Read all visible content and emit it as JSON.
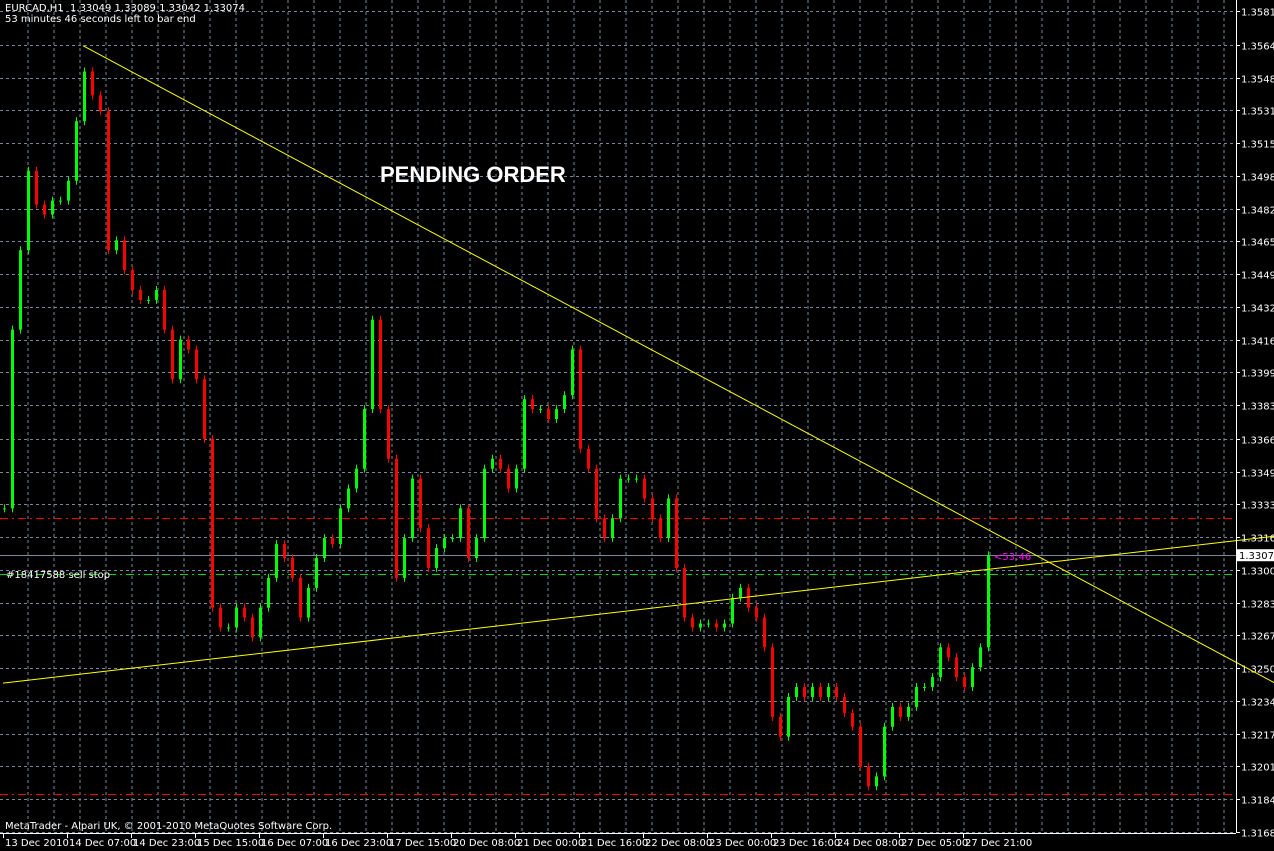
{
  "header": {
    "symbol_line": "EURCAD,H1  1.33049 1.33089 1.33042 1.33074",
    "timer_line": "53 minutes 46 seconds left to bar end"
  },
  "annotation": "PENDING ORDER",
  "copyright": "MetaTrader - Alpari UK, © 2001-2010 MetaQuotes Software Corp.",
  "order_label": "#18417588 sell stop",
  "bar_timer": "<53:46",
  "current_price": "1.33074",
  "colors": {
    "background": "#000000",
    "bull": "#00ff00",
    "bear": "#ff0000",
    "grid": "#778899",
    "trendline": "#ffff00",
    "order_line": "#00dd00",
    "stop_line": "#ff0000",
    "axis": "#ffffff",
    "timer": "#ff00ff"
  },
  "chart_data": {
    "type": "candlestick",
    "symbol": "EURCAD",
    "timeframe": "H1",
    "ylim": [
      1.3168,
      1.35815
    ],
    "grid": true,
    "y_ticks": [
      "1.35815",
      "1.35645",
      "1.35480",
      "1.35315",
      "1.35150",
      "1.34985",
      "1.34820",
      "1.34655",
      "1.34490",
      "1.34325",
      "1.34160",
      "1.33995",
      "1.33830",
      "1.33660",
      "1.33495",
      "1.33330",
      "1.33165",
      "1.33000",
      "1.32835",
      "1.32670",
      "1.32505",
      "1.32340",
      "1.32175",
      "1.32010",
      "1.31845",
      "1.31680"
    ],
    "x_ticks": [
      "13 Dec 2010",
      "14 Dec 07:00",
      "14 Dec 23:00",
      "15 Dec 15:00",
      "16 Dec 07:00",
      "16 Dec 23:00",
      "17 Dec 15:00",
      "20 Dec 08:00",
      "21 Dec 00:00",
      "21 Dec 16:00",
      "22 Dec 08:00",
      "23 Dec 00:00",
      "23 Dec 16:00",
      "24 Dec 08:00",
      "27 Dec 05:00",
      "27 Dec 21:00"
    ],
    "closes": [
      1.3331,
      1.3421,
      1.3461,
      1.3501,
      1.3484,
      1.3479,
      1.3486,
      1.3486,
      1.3496,
      1.3526,
      1.3551,
      1.3539,
      1.3531,
      1.3461,
      1.3466,
      1.3451,
      1.3441,
      1.3436,
      1.3436,
      1.3441,
      1.3421,
      1.3396,
      1.3416,
      1.3411,
      1.3396,
      1.3366,
      1.3281,
      1.3271,
      1.3271,
      1.3281,
      1.3276,
      1.3266,
      1.3281,
      1.3296,
      1.3313,
      1.3306,
      1.3296,
      1.3276,
      1.3291,
      1.3306,
      1.3316,
      1.3313,
      1.3331,
      1.3341,
      1.3351,
      1.3381,
      1.3426,
      1.3381,
      1.3356,
      1.3296,
      1.3316,
      1.3346,
      1.3321,
      1.3301,
      1.3311,
      1.3316,
      1.3316,
      1.3331,
      1.3306,
      1.3316,
      1.3351,
      1.3356,
      1.3351,
      1.3341,
      1.3351,
      1.3386,
      1.3381,
      1.3381,
      1.3376,
      1.3381,
      1.3388,
      1.3411,
      1.3361,
      1.3351,
      1.3326,
      1.3316,
      1.3326,
      1.3346,
      1.3346,
      1.3346,
      1.3336,
      1.3326,
      1.3316,
      1.3336,
      1.3301,
      1.3276,
      1.3271,
      1.3273,
      1.3273,
      1.3271,
      1.3273,
      1.3286,
      1.3291,
      1.3281,
      1.3276,
      1.3261,
      1.3226,
      1.3216,
      1.3236,
      1.3241,
      1.3236,
      1.3241,
      1.3236,
      1.3241,
      1.3236,
      1.3228,
      1.3221,
      1.3201,
      1.3191,
      1.3196,
      1.3221,
      1.3231,
      1.3226,
      1.3231,
      1.3241,
      1.3241,
      1.3246,
      1.3261,
      1.3256,
      1.3246,
      1.3241,
      1.3251,
      1.3261,
      1.33074
    ],
    "horizontal_lines": [
      {
        "name": "sell-stop-order",
        "price": 1.3298,
        "style": "dash-dot",
        "color": "#00dd00"
      },
      {
        "name": "stop-loss",
        "price": 1.3326,
        "style": "dash-dot",
        "color": "#ff0000"
      },
      {
        "name": "take-profit",
        "price": 1.3187,
        "style": "dash-dot",
        "color": "#ff0000"
      },
      {
        "name": "bid",
        "price": 1.33074,
        "style": "solid",
        "color": "#778899"
      }
    ],
    "trendlines": [
      {
        "name": "resistance-trendline",
        "from": {
          "bar": 10,
          "price": 1.3564
        },
        "to": {
          "bar": 159,
          "price": 1.3243
        }
      },
      {
        "name": "support-trendline",
        "from": {
          "bar": 0,
          "price": 1.3243
        },
        "to": {
          "bar": 159,
          "price": 1.3317
        }
      }
    ]
  }
}
